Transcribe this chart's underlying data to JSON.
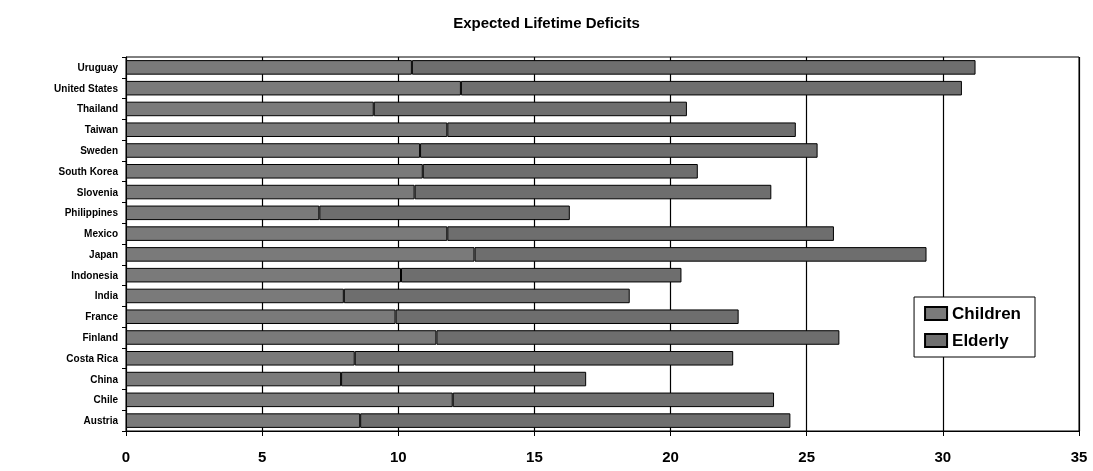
{
  "chart_data": {
    "type": "bar",
    "title": "Expected Lifetime Deficits",
    "orientation": "horizontal",
    "stacked": true,
    "categories": [
      "Uruguay",
      "United States",
      "Thailand",
      "Taiwan",
      "Sweden",
      "South Korea",
      "Slovenia",
      "Philippines",
      "Mexico",
      "Japan",
      "Indonesia",
      "India",
      "France",
      "Finland",
      "Costa Rica",
      "China",
      "Chile",
      "Austria"
    ],
    "series": [
      {
        "name": "Children",
        "color": "#7a7a7a",
        "values": [
          10.5,
          12.3,
          9.1,
          11.8,
          10.8,
          10.9,
          10.6,
          7.1,
          11.8,
          12.8,
          10.1,
          8.0,
          9.9,
          11.4,
          8.4,
          7.9,
          12.0,
          8.6
        ]
      },
      {
        "name": "Elderly",
        "color": "#6e6e6e",
        "values": [
          20.7,
          18.4,
          11.5,
          12.8,
          14.6,
          10.1,
          13.1,
          9.2,
          14.2,
          16.6,
          10.3,
          10.5,
          12.6,
          14.8,
          13.9,
          9.0,
          11.8,
          15.8
        ]
      }
    ],
    "xlim": [
      0,
      35
    ],
    "xticks": [
      0,
      5,
      10,
      15,
      20,
      25,
      30,
      35
    ],
    "grid": "x",
    "legend": "right"
  }
}
